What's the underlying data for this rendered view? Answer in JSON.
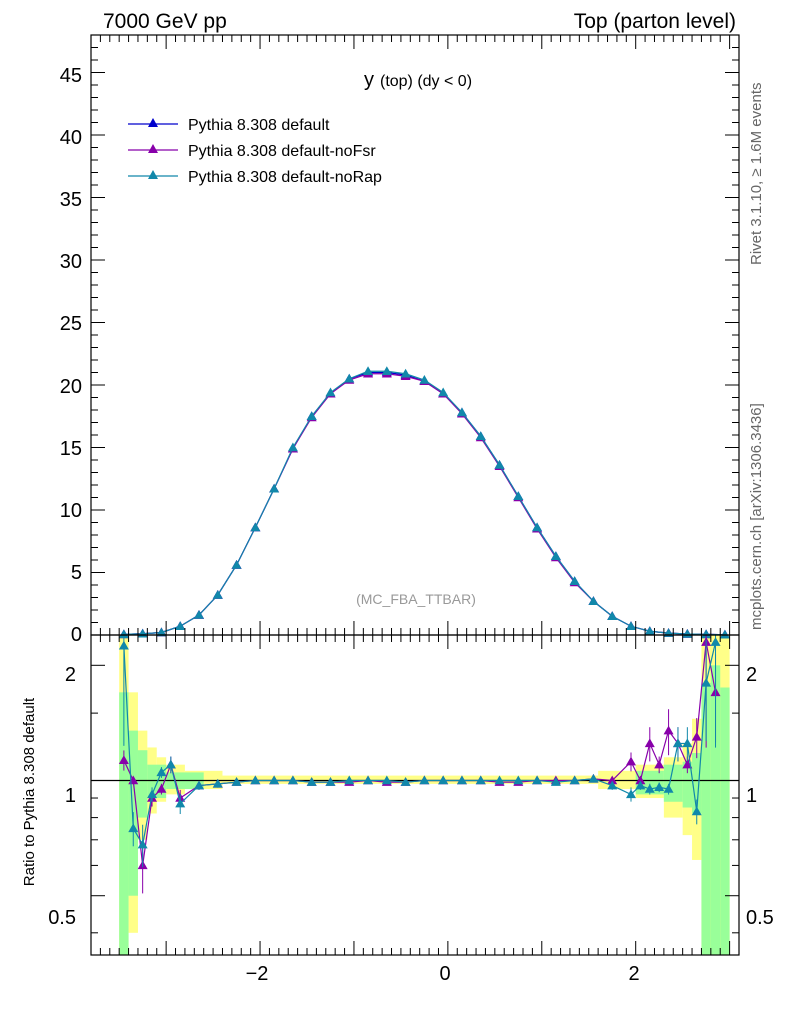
{
  "header": {
    "left": "7000 GeV pp",
    "right": "Top (parton level)"
  },
  "main_panel": {
    "title_main": "y",
    "title_sub": "(top) (dy < 0)",
    "watermark": "(MC_FBA_TTBAR)",
    "y_ticks": [
      "0",
      "5",
      "10",
      "15",
      "20",
      "25",
      "30",
      "35",
      "40",
      "45"
    ]
  },
  "ratio_panel": {
    "ylabel": "Ratio to Pythia 8.308 default",
    "y_ticks": [
      "0.5",
      "1",
      "2"
    ]
  },
  "x_ticks": [
    "−2",
    "0",
    "2"
  ],
  "side_text": {
    "rivet": "Rivet 3.1.10, ≥ 1.6M events",
    "mcplots": "mcplots.cern.ch [arXiv:1306.3436]"
  },
  "legend": [
    {
      "name": "Pythia 8.308 default",
      "color": "#0000cc"
    },
    {
      "name": "Pythia 8.308 default-noFsr",
      "color": "#8800aa"
    },
    {
      "name": "Pythia 8.308 default-noRap",
      "color": "#1188aa"
    }
  ],
  "colors": {
    "band_yellow": "#ffff88",
    "band_green": "#99ff99"
  },
  "chart_data": [
    {
      "type": "line",
      "panel": "main",
      "xlim": [
        -3.8,
        3.1
      ],
      "ylim": [
        0,
        48
      ],
      "x": [
        -3.45,
        -3.25,
        -3.05,
        -2.85,
        -2.65,
        -2.45,
        -2.25,
        -2.05,
        -1.85,
        -1.65,
        -1.45,
        -1.25,
        -1.05,
        -0.85,
        -0.65,
        -0.45,
        -0.25,
        -0.05,
        0.15,
        0.35,
        0.55,
        0.75,
        0.95,
        1.15,
        1.35,
        1.55,
        1.75,
        1.95,
        2.15,
        2.35,
        2.55,
        2.75,
        2.95
      ],
      "series": [
        {
          "name": "Pythia 8.308 default",
          "values": [
            0.05,
            0.1,
            0.2,
            0.7,
            1.6,
            3.2,
            5.6,
            8.6,
            11.7,
            14.9,
            17.5,
            19.3,
            20.5,
            21.0,
            21.0,
            20.8,
            20.3,
            19.3,
            17.8,
            15.9,
            13.6,
            11.1,
            8.6,
            6.3,
            4.3,
            2.7,
            1.5,
            0.7,
            0.3,
            0.15,
            0.08,
            0.05,
            0.02
          ]
        },
        {
          "name": "Pythia 8.308 default-noFsr",
          "values": [
            0.05,
            0.1,
            0.2,
            0.7,
            1.6,
            3.2,
            5.6,
            8.6,
            11.7,
            14.9,
            17.4,
            19.3,
            20.4,
            20.9,
            20.9,
            20.7,
            20.3,
            19.3,
            17.7,
            15.8,
            13.5,
            11.0,
            8.5,
            6.2,
            4.2,
            2.7,
            1.5,
            0.7,
            0.3,
            0.15,
            0.08,
            0.05,
            0.02
          ]
        },
        {
          "name": "Pythia 8.308 default-noRap",
          "values": [
            0.05,
            0.1,
            0.2,
            0.7,
            1.6,
            3.2,
            5.6,
            8.6,
            11.7,
            15.0,
            17.5,
            19.4,
            20.5,
            21.1,
            21.1,
            20.9,
            20.4,
            19.4,
            17.8,
            15.9,
            13.6,
            11.1,
            8.6,
            6.3,
            4.3,
            2.7,
            1.5,
            0.7,
            0.3,
            0.15,
            0.08,
            0.05,
            0.02
          ]
        }
      ]
    },
    {
      "type": "line",
      "panel": "ratio",
      "ylim": [
        0.35,
        2.4
      ],
      "y_scale": "log",
      "x": [
        -3.45,
        -3.35,
        -3.25,
        -3.15,
        -3.05,
        -2.95,
        -2.85,
        -2.65,
        -2.45,
        -2.25,
        -2.05,
        -1.85,
        -1.65,
        -1.45,
        -1.25,
        -1.05,
        -0.85,
        -0.65,
        -0.45,
        -0.25,
        -0.05,
        0.15,
        0.35,
        0.55,
        0.75,
        0.95,
        1.15,
        1.35,
        1.55,
        1.75,
        1.95,
        2.05,
        2.15,
        2.25,
        2.35,
        2.45,
        2.55,
        2.65,
        2.75,
        2.85
      ],
      "series": [
        {
          "name": "Pythia 8.308 default",
          "values": [
            1,
            1,
            1,
            1,
            1,
            1,
            1,
            1,
            1,
            1,
            1,
            1,
            1,
            1,
            1,
            1,
            1,
            1,
            1,
            1,
            1,
            1,
            1,
            1,
            1,
            1,
            1,
            1,
            1,
            1,
            1,
            1,
            1,
            1,
            1,
            1,
            1,
            1,
            1,
            1
          ]
        },
        {
          "name": "Pythia 8.308 default-noFsr",
          "values": [
            1.13,
            1.0,
            0.6,
            0.9,
            0.95,
            1.1,
            0.9,
            0.97,
            0.98,
            0.99,
            1.0,
            1.0,
            1.0,
            0.99,
            0.99,
            0.99,
            1.0,
            0.99,
            0.99,
            1.0,
            1.0,
            1.0,
            1.0,
            0.99,
            0.99,
            1.0,
            1.0,
            1.0,
            1.01,
            1.0,
            1.12,
            1.0,
            1.25,
            1.1,
            1.35,
            1.25,
            1.1,
            1.3,
            2.3,
            1.7
          ]
        },
        {
          "name": "Pythia 8.308 default-noRap",
          "values": [
            2.25,
            0.75,
            0.68,
            0.92,
            1.05,
            1.1,
            0.87,
            0.97,
            0.98,
            0.99,
            1.0,
            1.0,
            1.0,
            0.99,
            0.99,
            1.0,
            1.0,
            1.0,
            0.99,
            1.0,
            1.0,
            1.0,
            1.0,
            1.0,
            1.0,
            1.0,
            0.99,
            1.0,
            1.01,
            0.97,
            0.92,
            0.97,
            0.95,
            0.96,
            0.95,
            1.25,
            1.25,
            0.83,
            1.8,
            2.3
          ]
        }
      ]
    }
  ]
}
